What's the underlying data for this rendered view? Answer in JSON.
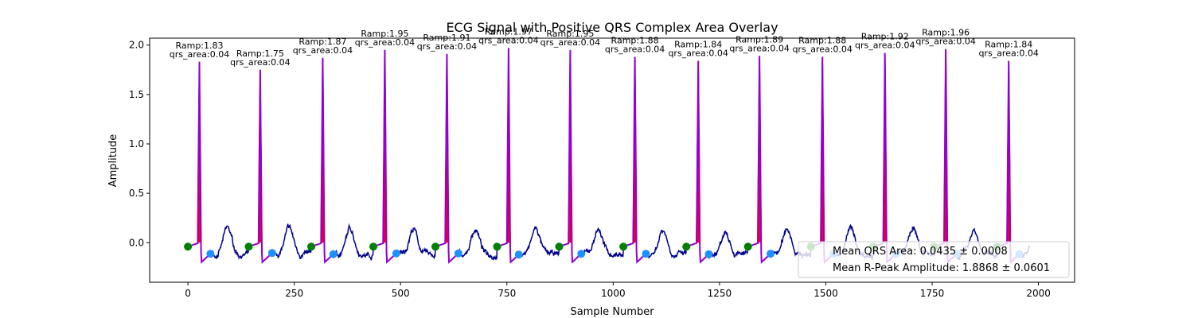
{
  "chart_data": {
    "type": "line",
    "title": "ECG Signal with Positive QRS Complex Area Overlay",
    "xlabel": "Sample Number",
    "ylabel": "Amplitude",
    "xlim": [
      -90,
      2085
    ],
    "ylim": [
      -0.4,
      2.07
    ],
    "xticks": [
      0,
      250,
      500,
      750,
      1000,
      1250,
      1500,
      1750,
      2000
    ],
    "yticks": [
      0.0,
      0.5,
      1.0,
      1.5,
      2.0
    ],
    "grid": false,
    "colors": {
      "signal": "#00008b",
      "qrs": "#9400d3",
      "area": "#ff0000",
      "onset": "#008000",
      "offset": "#1e90ff"
    },
    "beats": [
      {
        "onset": 0,
        "r_peak": 27,
        "r_amp": 1.83,
        "offset": 53,
        "label_ramp": "Ramp:1.83",
        "label_area": "qrs_area:0.04"
      },
      {
        "onset": 143,
        "r_peak": 170,
        "r_amp": 1.75,
        "offset": 198,
        "label_ramp": "Ramp:1.75",
        "label_area": "qrs_area:0.04"
      },
      {
        "onset": 290,
        "r_peak": 317,
        "r_amp": 1.87,
        "offset": 342,
        "label_ramp": "Ramp:1.87",
        "label_area": "qrs_area:0.04"
      },
      {
        "onset": 436,
        "r_peak": 463,
        "r_amp": 1.95,
        "offset": 490,
        "label_ramp": "Ramp:1.95",
        "label_area": "qrs_area:0.04"
      },
      {
        "onset": 582,
        "r_peak": 609,
        "r_amp": 1.91,
        "offset": 636,
        "label_ramp": "Ramp:1.91",
        "label_area": "qrs_area:0.04"
      },
      {
        "onset": 727,
        "r_peak": 754,
        "r_amp": 1.97,
        "offset": 778,
        "label_ramp": "Ramp:1.97",
        "label_area": "qrs_area:0.04"
      },
      {
        "onset": 873,
        "r_peak": 899,
        "r_amp": 1.95,
        "offset": 925,
        "label_ramp": "Ramp:1.95",
        "label_area": "qrs_area:0.04"
      },
      {
        "onset": 1024,
        "r_peak": 1051,
        "r_amp": 1.88,
        "offset": 1077,
        "label_ramp": "Ramp:1.88",
        "label_area": "qrs_area:0.04"
      },
      {
        "onset": 1172,
        "r_peak": 1200,
        "r_amp": 1.84,
        "offset": 1225,
        "label_ramp": "Ramp:1.84",
        "label_area": "qrs_area:0.04"
      },
      {
        "onset": 1317,
        "r_peak": 1344,
        "r_amp": 1.89,
        "offset": 1370,
        "label_ramp": "Ramp:1.89",
        "label_area": "qrs_area:0.04"
      },
      {
        "onset": 1465,
        "r_peak": 1492,
        "r_amp": 1.88,
        "offset": 1518,
        "label_ramp": "Ramp:1.88",
        "label_area": "qrs_area:0.04"
      },
      {
        "onset": 1612,
        "r_peak": 1639,
        "r_amp": 1.92,
        "offset": 1665,
        "label_ramp": "Ramp:1.92",
        "label_area": "qrs_area:0.04"
      },
      {
        "onset": 1755,
        "r_peak": 1782,
        "r_amp": 1.96,
        "offset": 1808,
        "label_ramp": "Ramp:1.96",
        "label_area": "qrs_area:0.04"
      },
      {
        "onset": 1903,
        "r_peak": 1930,
        "r_amp": 1.84,
        "offset": 1955,
        "label_ramp": "Ramp:1.84",
        "label_area": "qrs_area:0.04"
      }
    ],
    "legend": {
      "location": "lower-right",
      "entries": [
        "Mean QRS Area: 0.0435 ± 0.0008",
        "Mean R-Peak Amplitude: 1.8868 ± 0.0601"
      ]
    }
  }
}
